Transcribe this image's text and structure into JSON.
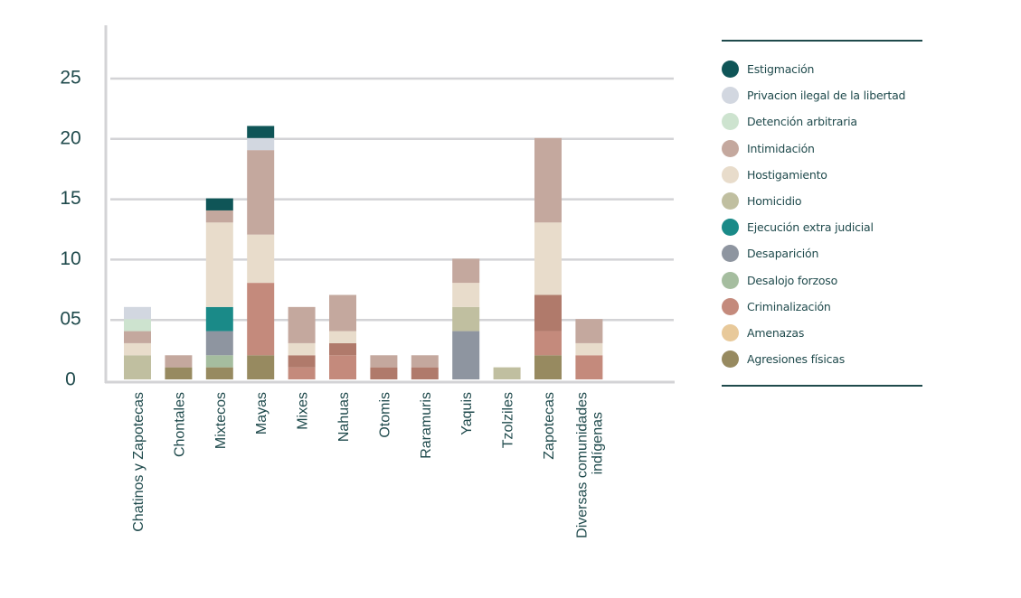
{
  "chart_data": {
    "type": "bar",
    "stacked": true,
    "title": "",
    "xlabel": "",
    "ylabel": "",
    "ylim": [
      0,
      25
    ],
    "yticks": [
      0,
      5,
      10,
      15,
      20,
      25
    ],
    "ytick_labels": [
      "0",
      "05",
      "10",
      "15",
      "20",
      "25"
    ],
    "grid": true,
    "legend_position": "right",
    "categories": [
      "Chatinos y Zapotecas",
      "Chontales",
      "Mixtecos",
      "Mayas",
      "Mixes",
      "Nahuas",
      "Otomis",
      "Raramuris",
      "Yaquis",
      "Tzolziles",
      "Zapotecas",
      "Diversas comunidades indígenas"
    ],
    "series": [
      {
        "name": "Agresiones físicas",
        "color": "#978a60",
        "values": [
          0,
          1,
          1,
          2,
          0,
          0,
          0,
          0,
          0,
          0,
          2,
          0
        ]
      },
      {
        "name": "Amenazas",
        "color": "#e8c99a",
        "values": [
          0,
          0,
          0,
          0,
          0,
          0,
          0,
          0,
          0,
          0,
          0,
          0
        ]
      },
      {
        "name": "Criminalización",
        "color": "#c48a7c",
        "values": [
          0,
          0,
          0,
          6,
          1,
          2,
          0,
          0,
          0,
          0,
          2,
          2
        ]
      },
      {
        "name": "",
        "color": "#b07a6b",
        "values": [
          0,
          0,
          0,
          0,
          1,
          1,
          1,
          1,
          0,
          0,
          3,
          0
        ]
      },
      {
        "name": "Desalojo forzoso",
        "color": "#a5bd9f",
        "values": [
          0,
          0,
          1,
          0,
          0,
          0,
          0,
          0,
          0,
          0,
          0,
          0
        ]
      },
      {
        "name": "Desaparición",
        "color": "#8e95a0",
        "values": [
          0,
          0,
          2,
          0,
          0,
          0,
          0,
          0,
          4,
          0,
          0,
          0
        ]
      },
      {
        "name": "Ejecución extra judicial",
        "color": "#1a8a88",
        "values": [
          0,
          0,
          2,
          0,
          0,
          0,
          0,
          0,
          0,
          0,
          0,
          0
        ]
      },
      {
        "name": "Homicidio",
        "color": "#c0bfa0",
        "values": [
          2,
          0,
          0,
          0,
          0,
          0,
          0,
          0,
          2,
          1,
          0,
          0
        ]
      },
      {
        "name": "Hostigamiento",
        "color": "#e8dccb",
        "values": [
          1,
          0,
          7,
          4,
          1,
          1,
          0,
          0,
          2,
          0,
          6,
          1
        ]
      },
      {
        "name": "Intimidación",
        "color": "#c4a89e",
        "values": [
          1,
          1,
          1,
          7,
          3,
          3,
          1,
          1,
          2,
          0,
          7,
          2
        ]
      },
      {
        "name": "Detención arbitraria",
        "color": "#cde3cf",
        "values": [
          1,
          0,
          0,
          0,
          0,
          0,
          0,
          0,
          0,
          0,
          0,
          0
        ]
      },
      {
        "name": "Privacion ilegal de la libertad",
        "color": "#d2d7e0",
        "values": [
          1,
          0,
          0,
          1,
          0,
          0,
          0,
          0,
          0,
          0,
          0,
          0
        ]
      },
      {
        "name": "Estigmación",
        "color": "#0f5557",
        "values": [
          0,
          0,
          1,
          1,
          0,
          0,
          0,
          0,
          0,
          0,
          0,
          0
        ]
      }
    ],
    "legend": [
      {
        "label": "Estigmación",
        "color": "#0f5557"
      },
      {
        "label": "Privacion ilegal de la libertad",
        "color": "#d2d7e0"
      },
      {
        "label": "Detención arbitraria",
        "color": "#cde3cf"
      },
      {
        "label": "Intimidación",
        "color": "#c4a89e"
      },
      {
        "label": "Hostigamiento",
        "color": "#e8dccb"
      },
      {
        "label": "Homicidio",
        "color": "#c0bfa0"
      },
      {
        "label": "Ejecución extra judicial",
        "color": "#1a8a88"
      },
      {
        "label": "Desaparición",
        "color": "#8e95a0"
      },
      {
        "label": "Desalojo forzoso",
        "color": "#a5bd9f"
      },
      {
        "label": "Criminalización",
        "color": "#c48a7c"
      },
      {
        "label": "Amenazas",
        "color": "#e8c99a"
      },
      {
        "label": "Agresiones físicas",
        "color": "#978a60"
      }
    ]
  }
}
